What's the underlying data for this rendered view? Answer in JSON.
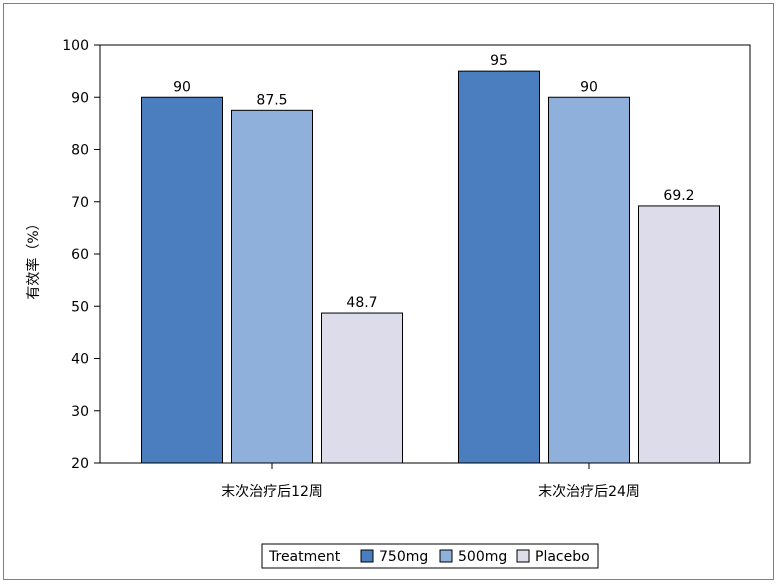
{
  "chart_data": {
    "type": "bar",
    "title": "",
    "xlabel": "",
    "ylabel": "有效率（%）",
    "ylim": [
      20,
      100
    ],
    "yticks": [
      20,
      30,
      40,
      50,
      60,
      70,
      80,
      90,
      100
    ],
    "categories": [
      "末次治疗后12周",
      "末次治疗后24周"
    ],
    "series": [
      {
        "name": "750mg",
        "values": [
          90,
          95
        ],
        "color": "#4a7ebf"
      },
      {
        "name": "500mg",
        "values": [
          87.5,
          90
        ],
        "color": "#8fb0da"
      },
      {
        "name": "Placebo",
        "values": [
          48.7,
          69.2
        ],
        "color": "#dcdceb"
      }
    ],
    "data_labels": [
      [
        "90",
        "95"
      ],
      [
        "87.5",
        "90"
      ],
      [
        "48.7",
        "69.2"
      ]
    ],
    "legend": {
      "title": "Treatment",
      "position": "bottom"
    },
    "grid": false
  }
}
